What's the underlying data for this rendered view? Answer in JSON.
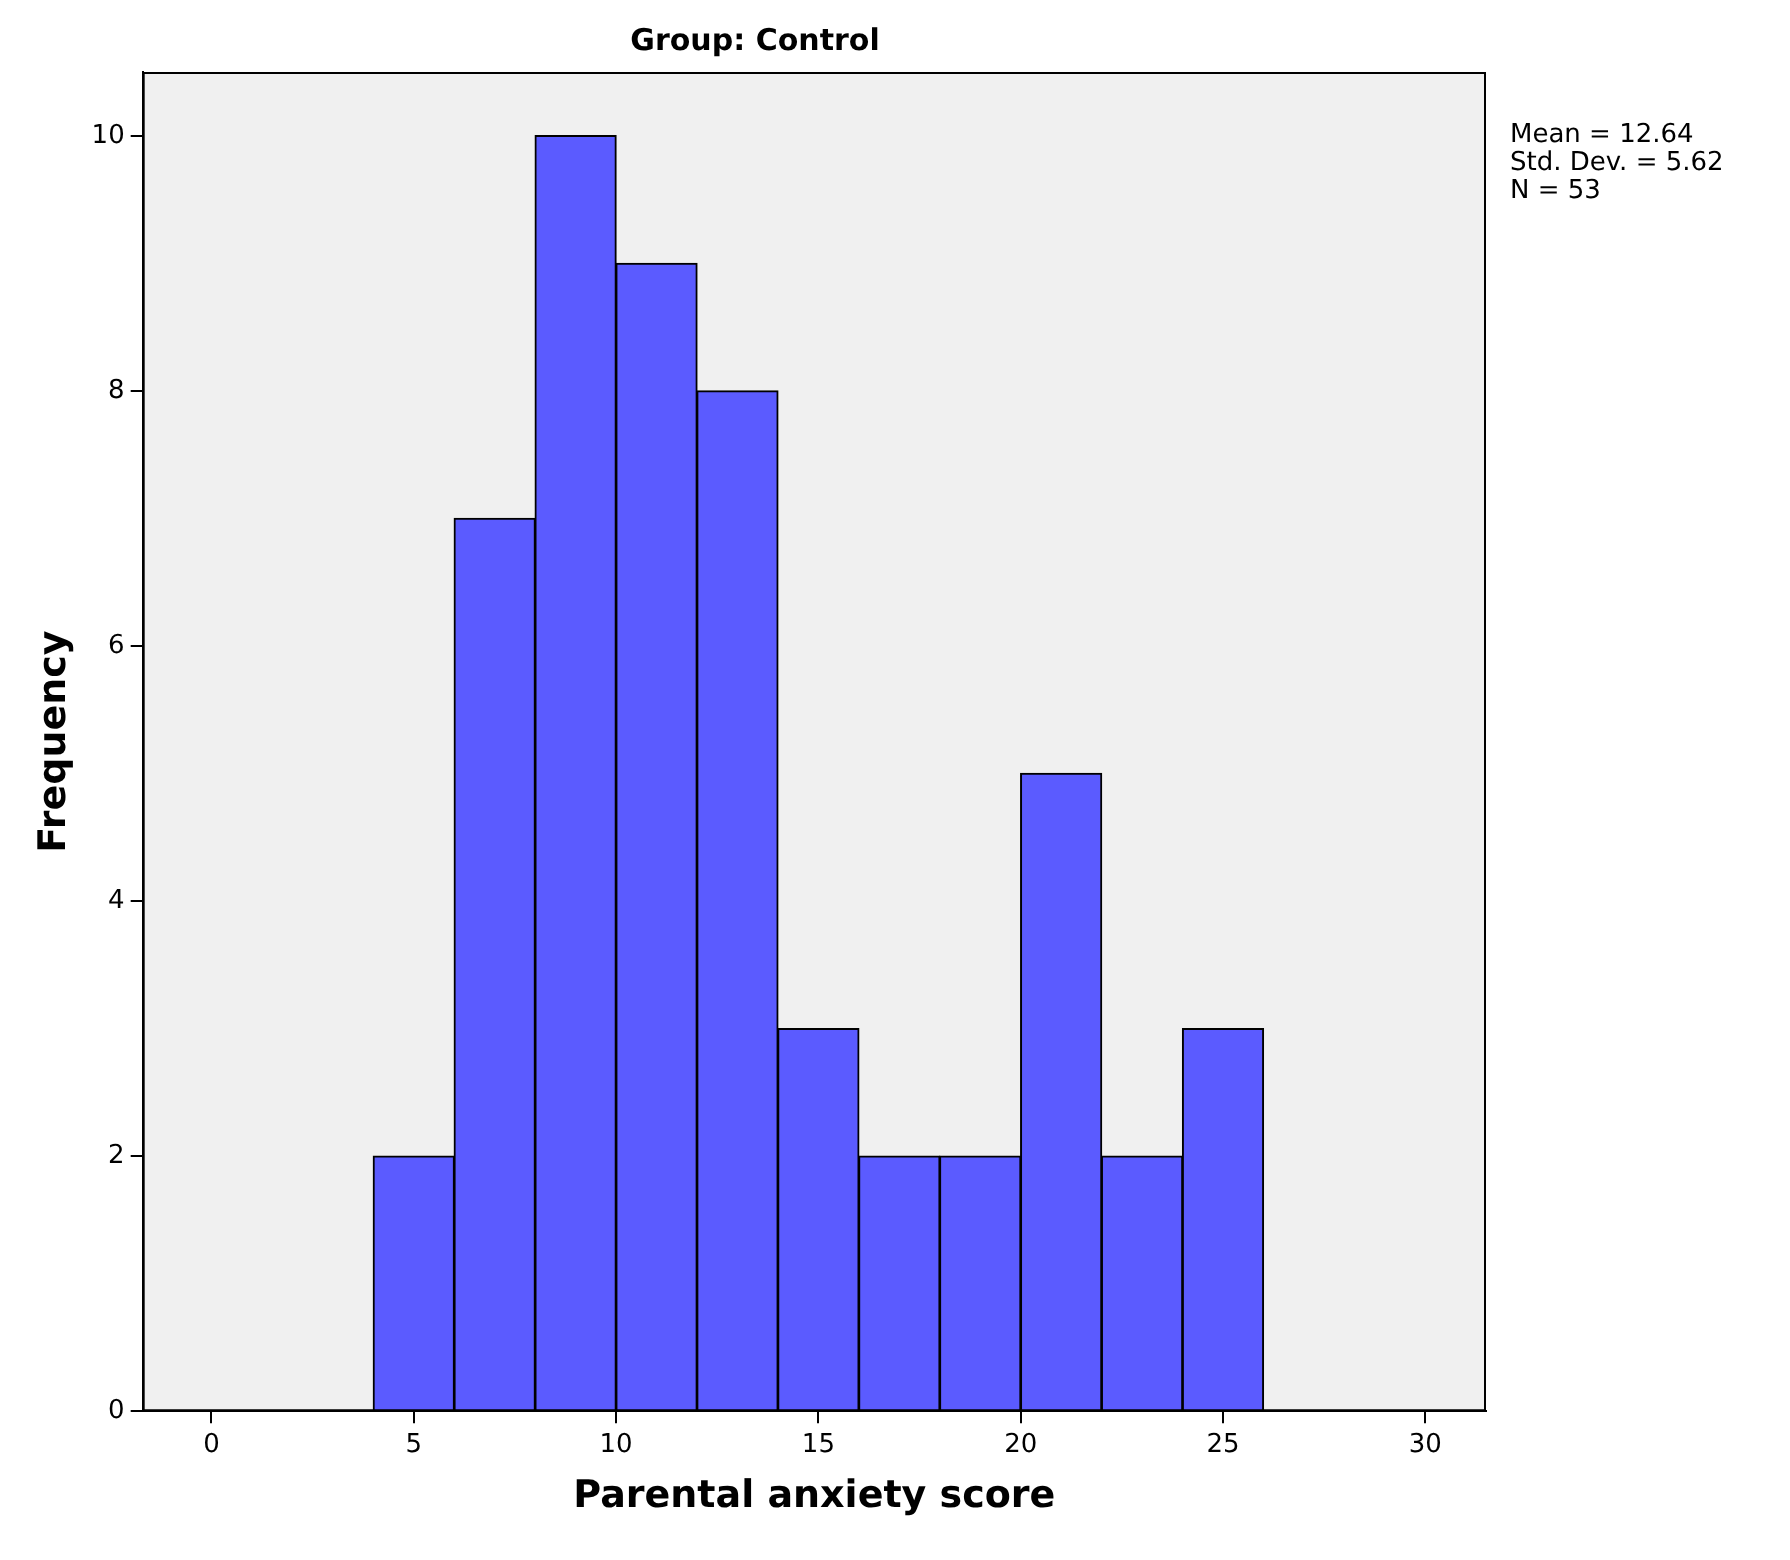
{
  "chart_data": {
    "type": "histogram",
    "title": "Group: Control",
    "xlabel": "Parental anxiety score",
    "ylabel": "Frequency",
    "bins": [
      4,
      6,
      8,
      10,
      12,
      14,
      16,
      18,
      20,
      22,
      24,
      26
    ],
    "values": [
      2,
      7,
      10,
      9,
      8,
      3,
      2,
      2,
      5,
      2,
      3
    ],
    "color": "#5b5bff",
    "xlim": [
      -1.7,
      31.5
    ],
    "xticks": [
      0,
      5,
      10,
      15,
      20,
      25,
      30
    ],
    "ylim": [
      0,
      10.5
    ],
    "yticks": [
      0,
      2,
      4,
      6,
      8,
      10
    ],
    "grid": false,
    "legend": false,
    "annotations": [
      "Mean = 12.64",
      "Std. Dev. = 5.62",
      "N = 53"
    ]
  }
}
